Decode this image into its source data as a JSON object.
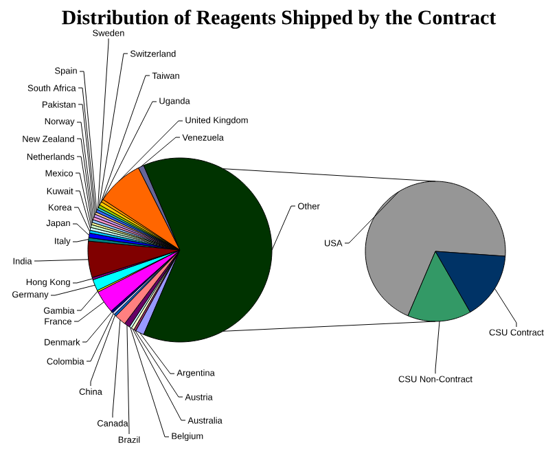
{
  "chart_data": [
    {
      "type": "pie",
      "title": "Distribution of Reagents Shipped by the Contract",
      "categories": [
        "Argentina",
        "Austria",
        "Australia",
        "Belgium",
        "Brazil",
        "Canada",
        "China",
        "Colombia",
        "Denmark",
        "France",
        "Gambia",
        "Germany",
        "Hong Kong",
        "India",
        "Italy",
        "Japan",
        "Korea",
        "Kuwait",
        "Mexico",
        "Netherlands",
        "New Zealand",
        "Norway",
        "Pakistan",
        "South Africa",
        "Spain",
        "Sweden",
        "Switzerland",
        "Taiwan",
        "Uganda",
        "United Kingdom",
        "Venezuela",
        "Other"
      ],
      "values": [
        1.5,
        0.4,
        0.5,
        0.4,
        1.0,
        2.0,
        0.4,
        0.4,
        0.4,
        4.0,
        0.3,
        2.0,
        0.4,
        6.4,
        0.6,
        0.8,
        0.5,
        0.5,
        0.5,
        0.4,
        0.5,
        0.5,
        0.5,
        0.4,
        0.5,
        0.4,
        0.5,
        0.6,
        0.5,
        8.3,
        1.0,
        62.9
      ],
      "colors": [
        "#9999ff",
        "#993366",
        "#ffffcc",
        "#ccffff",
        "#660066",
        "#ff8080",
        "#0066cc",
        "#ccccff",
        "#000080",
        "#ff00ff",
        "#ffff00",
        "#00ffff",
        "#800080",
        "#800000",
        "#008080",
        "#0000ff",
        "#00ccff",
        "#ccffff",
        "#ccffcc",
        "#ffff99",
        "#99ccff",
        "#ff99cc",
        "#cc99ff",
        "#ffcc99",
        "#3366ff",
        "#33cccc",
        "#99cc00",
        "#ffcc00",
        "#ff9900",
        "#ff6600",
        "#666699",
        "#003300"
      ]
    },
    {
      "type": "pie",
      "categories": [
        "USA",
        "CSU Non-Contract",
        "CSU Contract"
      ],
      "values": [
        69.7,
        14.7,
        15.6
      ],
      "colors": [
        "#969696",
        "#339966",
        "#003366"
      ]
    }
  ]
}
